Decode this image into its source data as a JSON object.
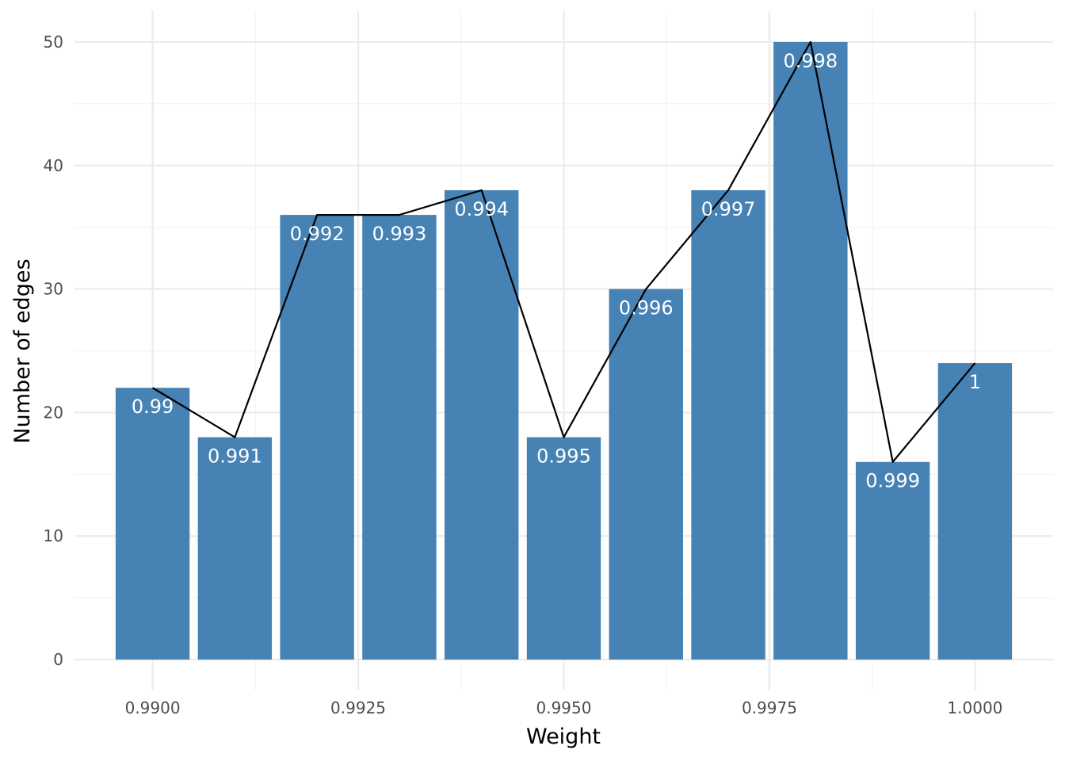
{
  "chart_data": {
    "type": "bar",
    "x": [
      0.99,
      0.991,
      0.992,
      0.993,
      0.994,
      0.995,
      0.996,
      0.997,
      0.998,
      0.999,
      1.0
    ],
    "values": [
      22,
      18,
      36,
      36,
      38,
      18,
      30,
      38,
      50,
      16,
      24
    ],
    "bar_labels": [
      "0.99",
      "0.991",
      "0.992",
      "0.993",
      "0.994",
      "0.995",
      "0.996",
      "0.997",
      "0.998",
      "0.999",
      "1"
    ],
    "overlay_line": true,
    "xlabel": "Weight",
    "ylabel": "Number of edges",
    "xlim": [
      0.98905,
      1.00095
    ],
    "ylim": [
      -2.5,
      52.5
    ],
    "x_ticks": [
      0.99,
      0.9925,
      0.995,
      0.9975,
      1.0
    ],
    "x_tick_labels": [
      "0.9900",
      "0.9925",
      "0.9950",
      "0.9975",
      "1.0000"
    ],
    "y_ticks": [
      0,
      10,
      20,
      30,
      40,
      50
    ],
    "y_tick_labels": [
      "0",
      "10",
      "20",
      "30",
      "40",
      "50"
    ],
    "grid": true,
    "legend": "none",
    "colors": {
      "bar": "#4682b4",
      "line": "#000000",
      "grid_major": "#ebebeb",
      "grid_minor": "#f5f5f5",
      "bar_label": "#ffffff"
    }
  }
}
